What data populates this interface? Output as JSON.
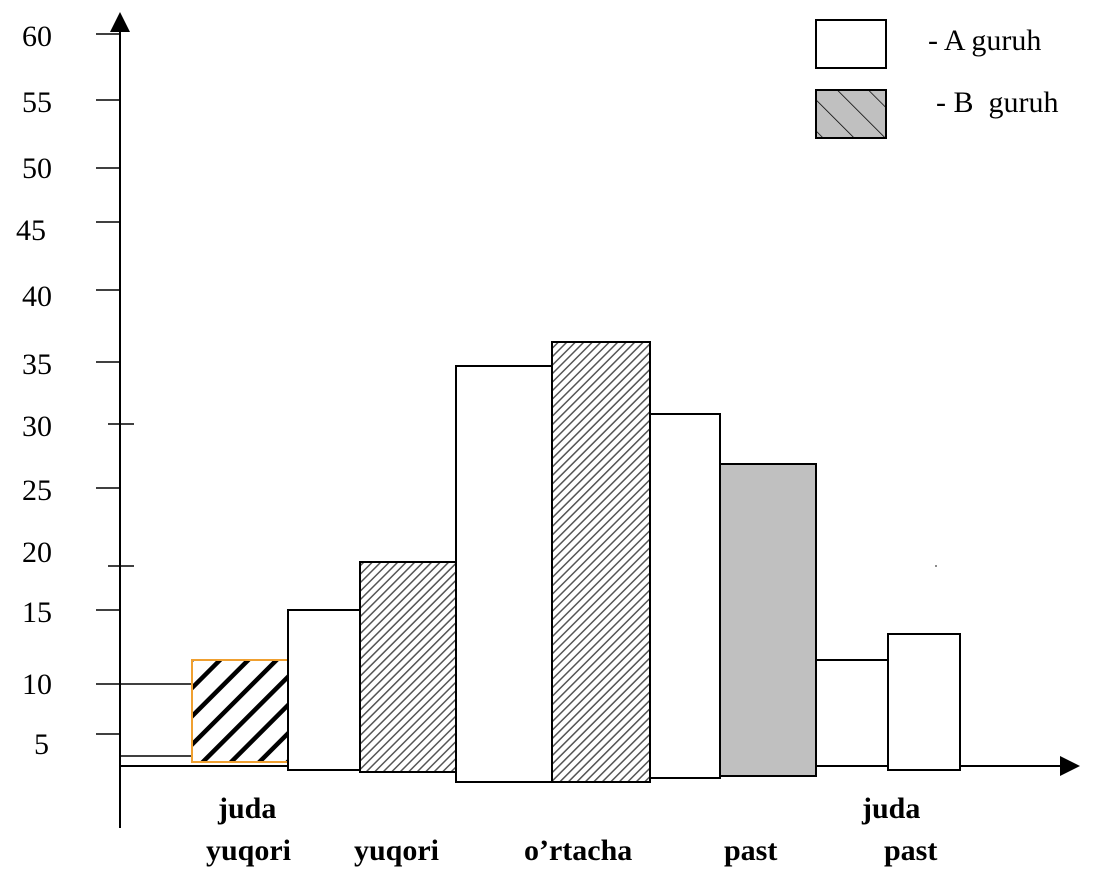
{
  "chart_data": {
    "type": "bar",
    "title": "",
    "xlabel": "",
    "ylabel": "",
    "ylim": [
      0,
      60
    ],
    "y_ticks": [
      "5",
      "10",
      "15",
      "20",
      "25",
      "30",
      "35",
      "40",
      "45",
      "50",
      "55",
      "60"
    ],
    "grid": false,
    "legend_position": "top-right",
    "category_labels": [
      {
        "lines": [
          "juda",
          "yuqori"
        ]
      },
      {
        "lines": [
          "yuqori"
        ]
      },
      {
        "lines": [
          "o’rtacha"
        ]
      },
      {
        "lines": [
          "past"
        ]
      },
      {
        "lines": [
          "juda",
          "past"
        ]
      }
    ],
    "series": [
      {
        "name": "- A guruh",
        "values": [
          12,
          33,
          30,
          11,
          12
        ]
      },
      {
        "name": "- B guruh",
        "values": [
          8,
          16,
          35,
          22,
          12
        ]
      }
    ],
    "legend": [
      {
        "label": "- A guruh",
        "fill": "white"
      },
      {
        "label": "- B  guruh",
        "fill": "grey-hatched"
      }
    ],
    "colors": {
      "a_fill": "#ffffff",
      "b_fill": "#c0c0c0",
      "stroke": "#000000",
      "first_b_border": "#f0a030"
    }
  }
}
